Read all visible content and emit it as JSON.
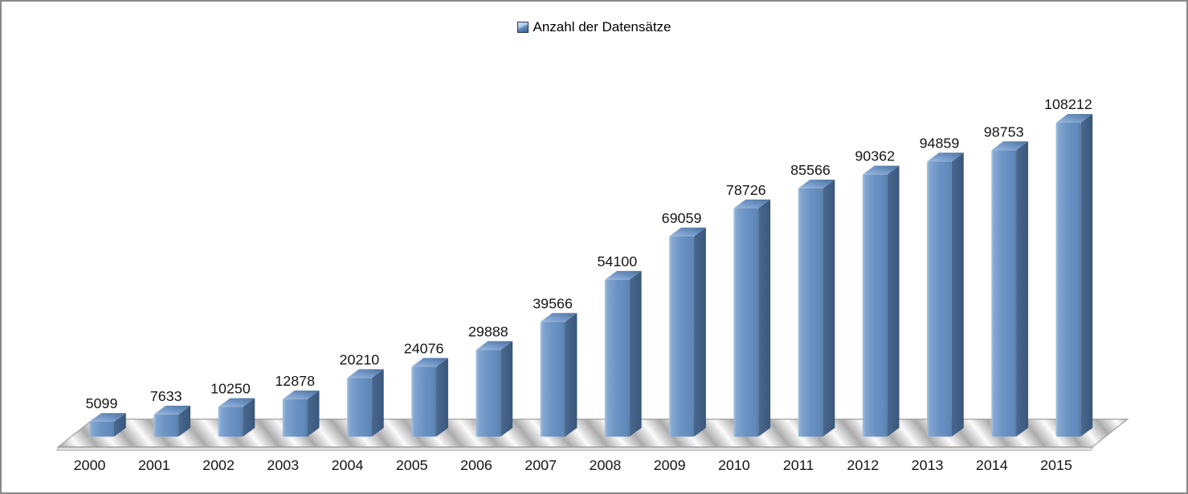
{
  "legend": {
    "label": "Anzahl der Datensätze",
    "marker": "blue-3d-cube-icon"
  },
  "chart_data": {
    "type": "bar",
    "style": "3d-column",
    "title": "",
    "legend_entries": [
      "Anzahl der Datensätze"
    ],
    "legend_position": "top-center",
    "categories": [
      "2000",
      "2001",
      "2002",
      "2003",
      "2004",
      "2005",
      "2006",
      "2007",
      "2008",
      "2009",
      "2010",
      "2011",
      "2012",
      "2013",
      "2014",
      "2015"
    ],
    "series": [
      {
        "name": "Anzahl der Datensätze",
        "values": [
          5099,
          7633,
          10250,
          12878,
          20210,
          24076,
          29888,
          39566,
          54100,
          69059,
          78726,
          85566,
          90362,
          94859,
          98753,
          108212
        ]
      }
    ],
    "data_labels": true,
    "gridlines": false,
    "xlabel": "",
    "ylabel": "",
    "y_axis_visible": false,
    "x_axis_visible": true,
    "ylim": [
      0,
      108212
    ]
  },
  "colors": {
    "bar_front": "#6b92c3",
    "bar_side": "#3f5c80",
    "bar_top": "#7096c6",
    "bar_highlight": "#a6c0e0",
    "floor_light": "#fbfbfb",
    "floor_dark": "#ababab",
    "frame_border": "#898989",
    "label_text": "#151515"
  }
}
